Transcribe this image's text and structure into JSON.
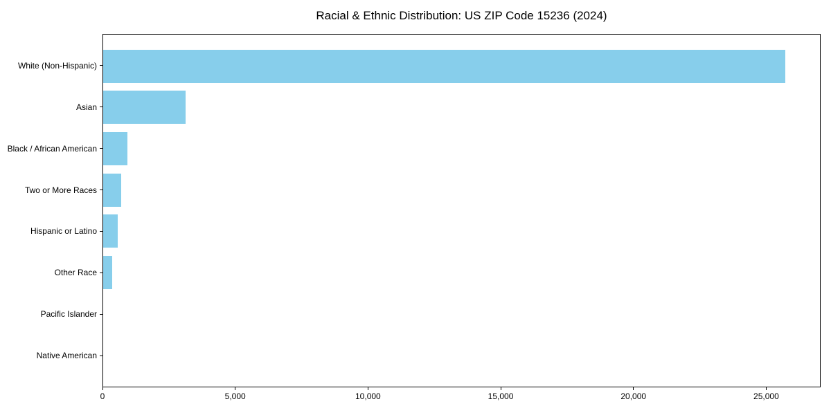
{
  "figure": {
    "background": "#ffffff"
  },
  "chart_data": {
    "type": "bar",
    "orientation": "horizontal",
    "title": "Racial & Ethnic Distribution: US ZIP Code 15236 (2024)",
    "categories": [
      "White (Non-Hispanic)",
      "Asian",
      "Black / African American",
      "Two or More Races",
      "Hispanic or Latino",
      "Other Race",
      "Pacific Islander",
      "Native American"
    ],
    "values": [
      25750,
      3100,
      920,
      670,
      550,
      350,
      0,
      0
    ],
    "xlabel": "",
    "ylabel": "",
    "xlim": [
      0,
      27050
    ],
    "xticks": [
      0,
      5000,
      10000,
      15000,
      20000,
      25000
    ],
    "xtick_labels": [
      "0",
      "5,000",
      "10,000",
      "15,000",
      "20,000",
      "25,000"
    ],
    "bar_color": "#87CEEB",
    "axis_color": "#000000",
    "text_color": "#000000",
    "grid": false,
    "legend": null
  }
}
